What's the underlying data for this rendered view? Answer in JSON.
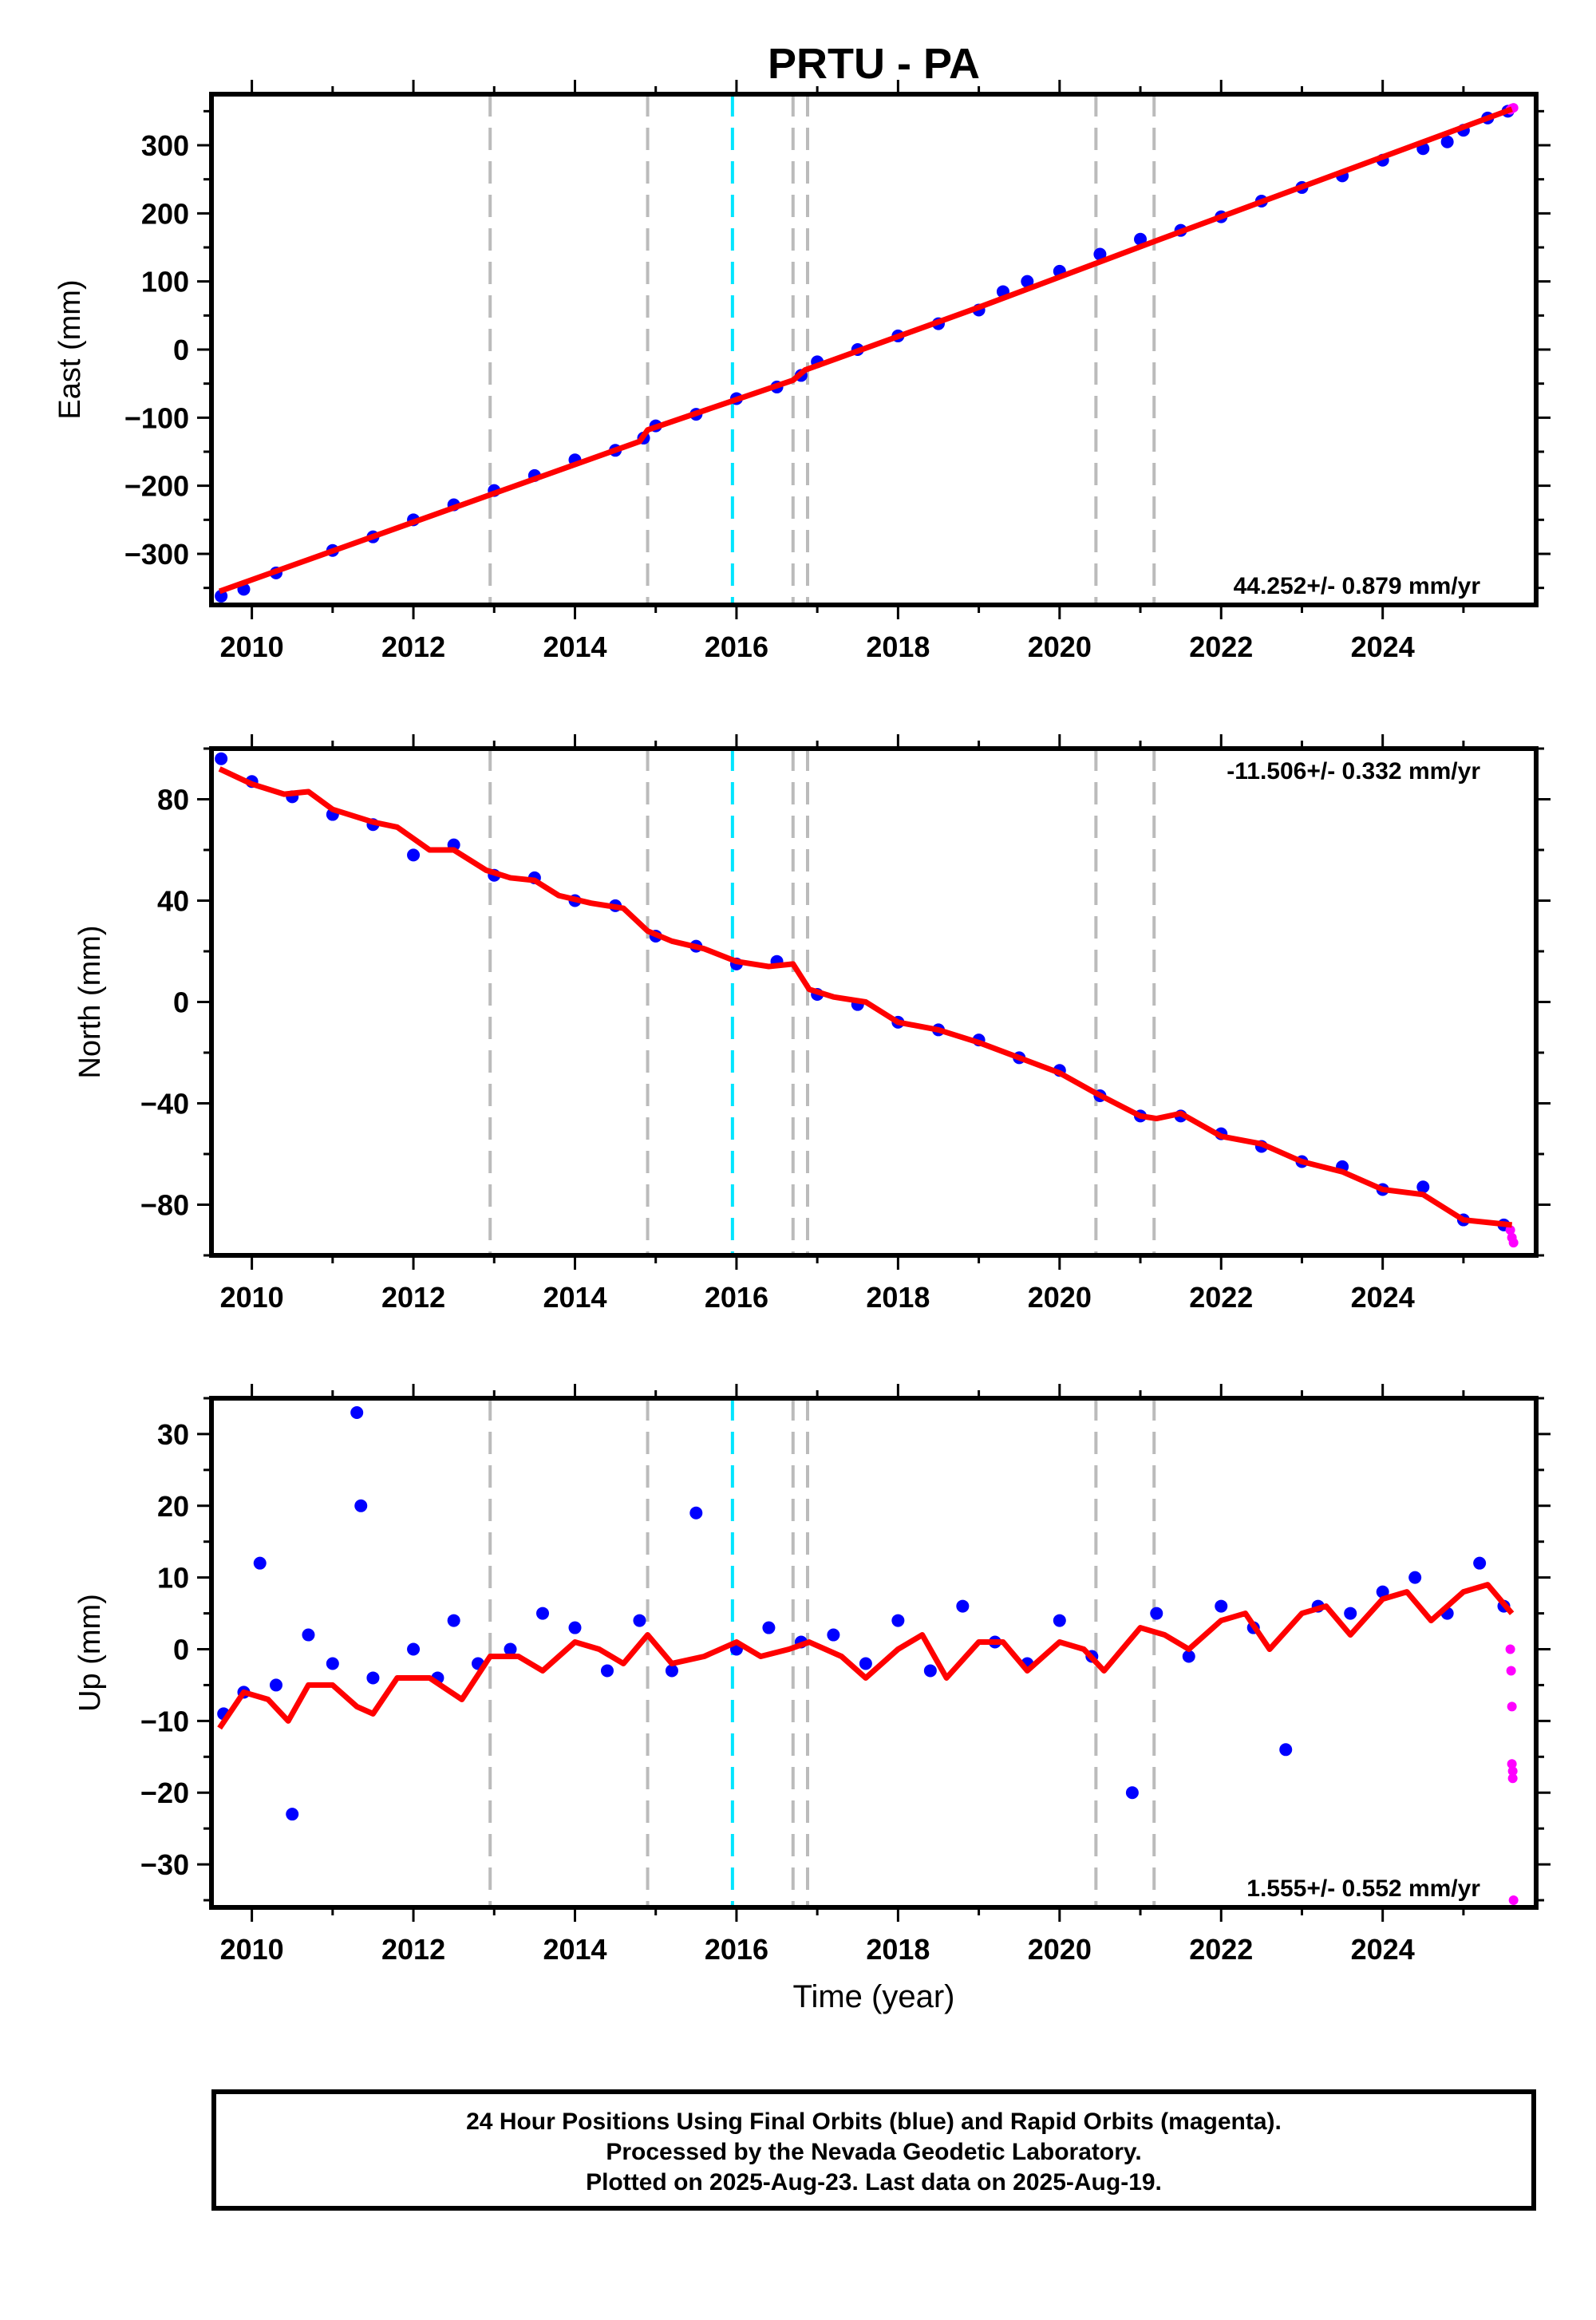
{
  "chart_data": [
    {
      "type": "scatter",
      "panel": "east",
      "title": "PRTU - PA",
      "xlabel": "",
      "ylabel": "East (mm)",
      "xlim": [
        2009.5,
        2025.9
      ],
      "ylim": [
        -375,
        375
      ],
      "xticks": [
        2010,
        2012,
        2014,
        2016,
        2018,
        2020,
        2022,
        2024
      ],
      "yticks": [
        -300,
        -200,
        -100,
        0,
        100,
        200,
        300
      ],
      "ytick_labels": [
        "−300",
        "−200",
        "−100",
        "0",
        "100",
        "200",
        "300"
      ],
      "rate_label": "44.252+/- 0.879 mm/yr",
      "rate_position": "bottom-right",
      "trend": {
        "x": [
          2009.6,
          2014.8,
          2014.9,
          2016.7,
          2016.85,
          2019.0,
          2021.2,
          2025.6
        ],
        "y": [
          -355,
          -135,
          -118,
          -45,
          -30,
          62,
          160,
          353
        ]
      },
      "series": [
        {
          "name": "Final Orbits",
          "color": "#0000ff",
          "x": [
            2009.62,
            2009.9,
            2010.3,
            2011.0,
            2011.5,
            2012.0,
            2012.5,
            2013.0,
            2013.5,
            2014.0,
            2014.5,
            2014.85,
            2015.0,
            2015.5,
            2016.0,
            2016.5,
            2016.8,
            2017.0,
            2017.5,
            2018.0,
            2018.5,
            2019.0,
            2019.3,
            2019.6,
            2020.0,
            2020.5,
            2021.0,
            2021.5,
            2022.0,
            2022.5,
            2023.0,
            2023.5,
            2024.0,
            2024.5,
            2024.8,
            2025.0,
            2025.3,
            2025.55
          ],
          "y": [
            -362,
            -352,
            -328,
            -295,
            -275,
            -250,
            -228,
            -207,
            -185,
            -162,
            -148,
            -130,
            -112,
            -95,
            -72,
            -55,
            -38,
            -18,
            0,
            20,
            38,
            58,
            85,
            100,
            115,
            140,
            162,
            175,
            195,
            218,
            238,
            255,
            278,
            295,
            305,
            322,
            340,
            350
          ]
        },
        {
          "name": "Rapid Orbits",
          "color": "#ff00ff",
          "x": [
            2025.58,
            2025.6,
            2025.62
          ],
          "y": [
            352,
            354,
            355
          ]
        }
      ],
      "breaks": [
        2012.95,
        2014.9,
        2016.7,
        2016.88,
        2020.45,
        2021.17
      ],
      "equipment_change": [
        2015.95
      ]
    },
    {
      "type": "scatter",
      "panel": "north",
      "xlabel": "",
      "ylabel": "North (mm)",
      "xlim": [
        2009.5,
        2025.9
      ],
      "ylim": [
        -100,
        100
      ],
      "xticks": [
        2010,
        2012,
        2014,
        2016,
        2018,
        2020,
        2022,
        2024
      ],
      "yticks": [
        -80,
        -40,
        0,
        40,
        80
      ],
      "ytick_labels": [
        "−80",
        "−40",
        "0",
        "40",
        "80"
      ],
      "rate_label": "-11.506+/- 0.332 mm/yr",
      "rate_position": "top-right",
      "trend": {
        "x": [
          2009.6,
          2010.0,
          2010.4,
          2010.7,
          2011.0,
          2011.5,
          2011.8,
          2012.2,
          2012.5,
          2012.9,
          2013.2,
          2013.5,
          2013.8,
          2014.2,
          2014.6,
          2014.9,
          2015.2,
          2015.6,
          2016.0,
          2016.4,
          2016.7,
          2016.9,
          2017.2,
          2017.6,
          2018.0,
          2018.5,
          2019.0,
          2019.5,
          2020.0,
          2020.45,
          2021.0,
          2021.2,
          2021.5,
          2022.0,
          2022.5,
          2023.0,
          2023.5,
          2024.0,
          2024.5,
          2025.0,
          2025.6
        ],
        "y": [
          92,
          86,
          82,
          83,
          76,
          71,
          69,
          60,
          60,
          52,
          49,
          48,
          42,
          39,
          37,
          28,
          24,
          21,
          16,
          14,
          15,
          5,
          2,
          0,
          -8,
          -11,
          -16,
          -22,
          -28,
          -36,
          -45,
          -46,
          -44,
          -53,
          -56,
          -63,
          -67,
          -74,
          -76,
          -86,
          -88
        ]
      },
      "series": [
        {
          "name": "Final Orbits",
          "color": "#0000ff",
          "x": [
            2009.62,
            2010.0,
            2010.5,
            2011.0,
            2011.5,
            2012.0,
            2012.5,
            2013.0,
            2013.5,
            2014.0,
            2014.5,
            2015.0,
            2015.5,
            2016.0,
            2016.5,
            2017.0,
            2017.5,
            2018.0,
            2018.5,
            2019.0,
            2019.5,
            2020.0,
            2020.5,
            2021.0,
            2021.5,
            2022.0,
            2022.5,
            2023.0,
            2023.5,
            2024.0,
            2024.5,
            2025.0,
            2025.5
          ],
          "y": [
            96,
            87,
            81,
            74,
            70,
            58,
            62,
            50,
            49,
            40,
            38,
            26,
            22,
            15,
            16,
            3,
            -1,
            -8,
            -11,
            -15,
            -22,
            -27,
            -37,
            -45,
            -45,
            -52,
            -57,
            -63,
            -65,
            -74,
            -73,
            -86,
            -88
          ]
        },
        {
          "name": "Rapid Orbits",
          "color": "#ff00ff",
          "x": [
            2025.58,
            2025.6,
            2025.62
          ],
          "y": [
            -90,
            -93,
            -95
          ]
        }
      ],
      "breaks": [
        2012.95,
        2014.9,
        2016.7,
        2016.88,
        2020.45,
        2021.17
      ],
      "equipment_change": [
        2015.95
      ]
    },
    {
      "type": "scatter",
      "panel": "up",
      "xlabel": "Time (year)",
      "ylabel": "Up (mm)",
      "xlim": [
        2009.5,
        2025.9
      ],
      "ylim": [
        -36,
        35
      ],
      "xticks": [
        2010,
        2012,
        2014,
        2016,
        2018,
        2020,
        2022,
        2024
      ],
      "yticks": [
        -30,
        -20,
        -10,
        0,
        10,
        20,
        30
      ],
      "ytick_labels": [
        "−30",
        "−20",
        "−10",
        "0",
        "10",
        "20",
        "30"
      ],
      "rate_label": "1.555+/- 0.552 mm/yr",
      "rate_position": "bottom-right",
      "trend": {
        "x": [
          2009.6,
          2009.9,
          2010.2,
          2010.45,
          2010.7,
          2011.0,
          2011.3,
          2011.5,
          2011.8,
          2012.2,
          2012.6,
          2012.95,
          2013.3,
          2013.6,
          2014.0,
          2014.3,
          2014.6,
          2014.9,
          2015.2,
          2015.6,
          2016.0,
          2016.3,
          2016.65,
          2016.9,
          2017.3,
          2017.6,
          2018.0,
          2018.3,
          2018.6,
          2019.0,
          2019.3,
          2019.6,
          2020.0,
          2020.3,
          2020.55,
          2021.0,
          2021.3,
          2021.6,
          2022.0,
          2022.3,
          2022.6,
          2023.0,
          2023.3,
          2023.6,
          2024.0,
          2024.3,
          2024.6,
          2025.0,
          2025.3,
          2025.6
        ],
        "y": [
          -11,
          -6,
          -7,
          -10,
          -5,
          -5,
          -8,
          -9,
          -4,
          -4,
          -7,
          -1,
          -1,
          -3,
          1,
          0,
          -2,
          2,
          -2,
          -1,
          1,
          -1,
          0,
          1,
          -1,
          -4,
          0,
          2,
          -4,
          1,
          1,
          -3,
          1,
          0,
          -3,
          3,
          2,
          0,
          4,
          5,
          0,
          5,
          6,
          2,
          7,
          8,
          4,
          8,
          9,
          5
        ]
      },
      "series": [
        {
          "name": "Final Orbits",
          "color": "#0000ff",
          "x": [
            2009.65,
            2009.9,
            2010.1,
            2010.3,
            2010.5,
            2010.7,
            2011.0,
            2011.3,
            2011.35,
            2011.5,
            2012.0,
            2012.3,
            2012.5,
            2012.8,
            2013.2,
            2013.6,
            2014.0,
            2014.4,
            2014.8,
            2015.2,
            2015.5,
            2016.0,
            2016.4,
            2016.8,
            2017.2,
            2017.6,
            2018.0,
            2018.4,
            2018.8,
            2019.2,
            2019.6,
            2020.0,
            2020.4,
            2020.9,
            2021.2,
            2021.6,
            2022.0,
            2022.4,
            2022.8,
            2023.2,
            2023.6,
            2024.0,
            2024.4,
            2024.8,
            2025.2,
            2025.5
          ],
          "y": [
            -9,
            -6,
            12,
            -5,
            -23,
            2,
            -2,
            33,
            20,
            -4,
            0,
            -4,
            4,
            -2,
            0,
            5,
            3,
            -3,
            4,
            -3,
            19,
            0,
            3,
            1,
            2,
            -2,
            4,
            -3,
            6,
            1,
            -2,
            4,
            -1,
            -20,
            5,
            -1,
            6,
            3,
            -14,
            6,
            5,
            8,
            10,
            5,
            12,
            6
          ]
        },
        {
          "name": "Rapid Orbits",
          "color": "#ff00ff",
          "x": [
            2025.58,
            2025.59,
            2025.6,
            2025.6,
            2025.61,
            2025.61,
            2025.62
          ],
          "y": [
            0,
            -3,
            -8,
            -16,
            -17,
            -18,
            -35
          ]
        }
      ],
      "breaks": [
        2012.95,
        2014.9,
        2016.7,
        2016.88,
        2020.45,
        2021.17
      ],
      "equipment_change": [
        2015.95
      ]
    }
  ],
  "footer": {
    "line1": "24 Hour Positions Using Final Orbits (blue) and Rapid Orbits (magenta).",
    "line2": "Processed by the Nevada Geodetic Laboratory.",
    "line3": "Plotted on 2025-Aug-23. Last data on 2025-Aug-19."
  },
  "colors": {
    "final_orbits": "#0000ff",
    "rapid_orbits": "#ff00ff",
    "trend": "#ff0000",
    "break_line": "#bbbbbb",
    "equipment_line": "#00e5ff"
  }
}
